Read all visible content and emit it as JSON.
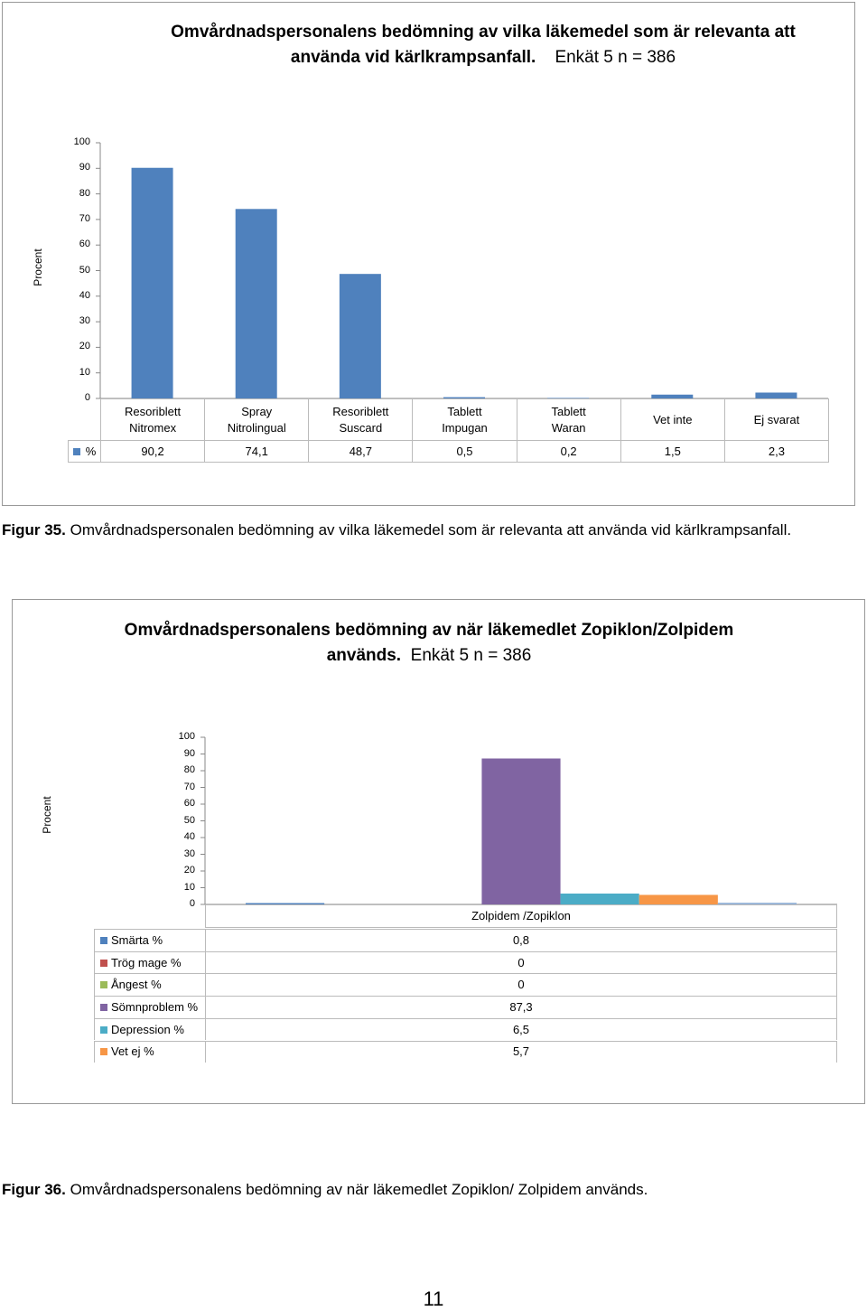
{
  "chart_data": [
    {
      "type": "bar",
      "title": "Omvårdnadspersonalens bedömning av vilka läkemedel som är relevanta att använda vid kärlkrampsanfall.",
      "subtitle": "Enkät 5 n = 386",
      "y_label": "Procent",
      "categories": [
        "Resoriblett Nitromex",
        "Spray Nitrolingual",
        "Resoriblett Suscard",
        "Tablett Impugan",
        "Tablett Waran",
        "Vet inte",
        "Ej svarat"
      ],
      "series": [
        {
          "name": "%",
          "color": "#4f81bd",
          "values": [
            90.2,
            74.1,
            48.7,
            0.5,
            0.2,
            1.5,
            2.3
          ],
          "value_labels": [
            "90,2",
            "74,1",
            "48,7",
            "0,5",
            "0,2",
            "1,5",
            "2,3"
          ]
        }
      ],
      "ylim": [
        0,
        100
      ],
      "yticks": [
        0,
        10,
        20,
        30,
        40,
        50,
        60,
        70,
        80,
        90,
        100
      ]
    },
    {
      "type": "bar",
      "title": "Omvårdnadspersonalens bedömning av när läkemedlet Zopiklon/Zolpidem används.",
      "subtitle": "Enkät 5 n = 386",
      "y_label": "Procent",
      "categories": [
        "Zolpidem /Zopiklon"
      ],
      "series": [
        {
          "name": "Smärta %",
          "color": "#4f81bd",
          "values": [
            0.8
          ],
          "value_labels": [
            "0,8"
          ]
        },
        {
          "name": "Trög mage %",
          "color": "#c0504d",
          "values": [
            0
          ]
        },
        {
          "name": "Ångest %",
          "color": "#9bbb59",
          "values": [
            0
          ]
        },
        {
          "name": "Sömnproblem %",
          "color": "#8064a2",
          "values": [
            87.3
          ],
          "value_labels": [
            "87,3"
          ]
        },
        {
          "name": "Depression %",
          "color": "#4bacc6",
          "values": [
            6.5
          ],
          "value_labels": [
            "6,5"
          ]
        },
        {
          "name": "Vet ej %",
          "color": "#f79646",
          "values": [
            5.7
          ],
          "value_labels": [
            "5,7"
          ]
        },
        {
          "color": "#95b3d7",
          "values": [
            1
          ]
        }
      ],
      "ylim": [
        0,
        100
      ],
      "yticks": [
        0,
        10,
        20,
        30,
        40,
        50,
        60,
        70,
        80,
        90,
        100
      ]
    }
  ],
  "captions": [
    {
      "label": "Figur 35.",
      "text": "Omvårdnadspersonalen bedömning av vilka läkemedel som är relevanta att använda vid kärlkrampsanfall."
    },
    {
      "label": "Figur 36.",
      "text": "Omvårdnadspersonalens bedömning av när läkemedlet Zopiklon/ Zolpidem används."
    }
  ],
  "page_number": "11"
}
